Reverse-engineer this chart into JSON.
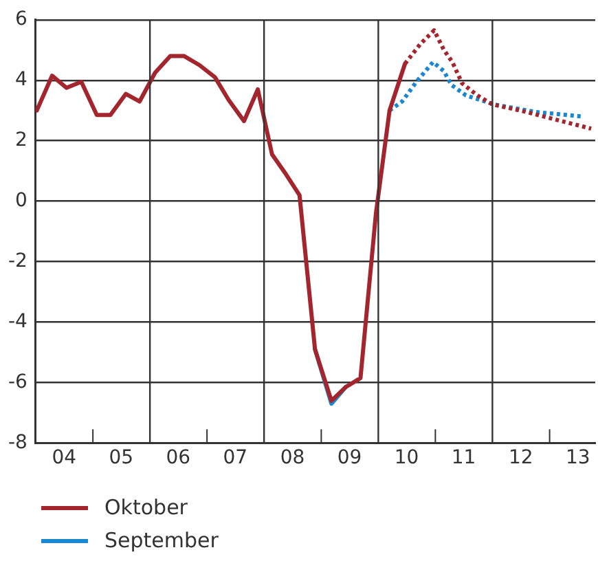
{
  "chart_data": {
    "type": "line",
    "series": [
      {
        "name": "Oktober",
        "color": "#a3262f",
        "line_style": "solid",
        "x": [
          "2004-01-08",
          "2004-04-15",
          "2004-07-16",
          "2004-10-19",
          "2005-01-26",
          "2005-04-23",
          "2005-07-31",
          "2005-10-27",
          "2006-02-03",
          "2006-05-11",
          "2006-08-08",
          "2006-11-14",
          "2007-02-21",
          "2007-05-19",
          "2007-08-26",
          "2007-11-22",
          "2008-02-21",
          "2008-05-19",
          "2008-08-15",
          "2008-11-22",
          "2009-03-07",
          "2009-06-06",
          "2009-09-09",
          "2009-12-17",
          "2010-03-14",
          "2010-06-21"
        ],
        "values": [
          3.0,
          4.15,
          3.75,
          3.95,
          2.85,
          2.85,
          3.55,
          3.3,
          4.25,
          4.8,
          4.8,
          4.5,
          4.1,
          3.35,
          2.65,
          3.7,
          1.55,
          0.9,
          0.2,
          -4.9,
          -6.6,
          -6.15,
          -5.85,
          -0.4,
          3.0,
          4.55
        ]
      },
      {
        "name": "September",
        "color": "#1b87d0",
        "line_style": "solid",
        "x": [
          "2008-11-22",
          "2009-03-07",
          "2009-06-06"
        ],
        "values": [
          -4.9,
          -6.7,
          -6.15
        ]
      },
      {
        "color": "#a3262f",
        "line_style": "dotted",
        "x": [
          "2010-06-21",
          "2010-09-27",
          "2010-12-24",
          "2011-02-25",
          "2011-04-20",
          "2011-06-21",
          "2011-09-27",
          "2012-01-01",
          "2012-06-28",
          "2013-01-01",
          "2013-09-24"
        ],
        "values": [
          4.55,
          5.2,
          5.65,
          5.0,
          4.6,
          3.9,
          3.5,
          3.2,
          3.0,
          2.75,
          2.4
        ]
      },
      {
        "color": "#1b87d0",
        "line_style": "dotted",
        "x": [
          "2010-03-14",
          "2010-06-03",
          "2010-09-02",
          "2010-12-17",
          "2011-02-25",
          "2011-04-13",
          "2011-07-16",
          "2012-01-12",
          "2012-10-05",
          "2013-08-04"
        ],
        "values": [
          3.0,
          3.3,
          3.95,
          4.6,
          4.3,
          3.85,
          3.5,
          3.2,
          2.95,
          2.8
        ]
      }
    ],
    "xlim": [
      "2004-01-01",
      "2013-10-20"
    ],
    "xticks": [
      {
        "value": "2004-07-01",
        "label": "04"
      },
      {
        "value": "2005-01-01",
        "label": null
      },
      {
        "value": "2005-07-01",
        "label": "05"
      },
      {
        "value": "2006-07-01",
        "label": "06"
      },
      {
        "value": "2007-01-01",
        "label": null
      },
      {
        "value": "2007-07-01",
        "label": "07"
      },
      {
        "value": "2008-07-01",
        "label": "08"
      },
      {
        "value": "2009-01-01",
        "label": null
      },
      {
        "value": "2009-07-01",
        "label": "09"
      },
      {
        "value": "2010-07-01",
        "label": "10"
      },
      {
        "value": "2011-01-01",
        "label": null
      },
      {
        "value": "2011-07-01",
        "label": "11"
      },
      {
        "value": "2012-07-01",
        "label": "12"
      },
      {
        "value": "2013-01-01",
        "label": null
      },
      {
        "value": "2013-07-01",
        "label": "13"
      }
    ],
    "ylim": [
      -8,
      6
    ],
    "yticks": [
      -8,
      -6,
      -4,
      -2,
      0,
      2,
      4,
      6
    ],
    "ref_lines": [
      {
        "axis": "x",
        "value": "2006-01-01",
        "color": "#333333"
      },
      {
        "axis": "x",
        "value": "2008-01-01",
        "color": "#333333"
      },
      {
        "axis": "x",
        "value": "2010-01-01",
        "color": "#333333"
      },
      {
        "axis": "x",
        "value": "2012-01-01",
        "color": "#333333"
      }
    ],
    "grid": "y",
    "legend": "bottom left",
    "marker": "none"
  }
}
